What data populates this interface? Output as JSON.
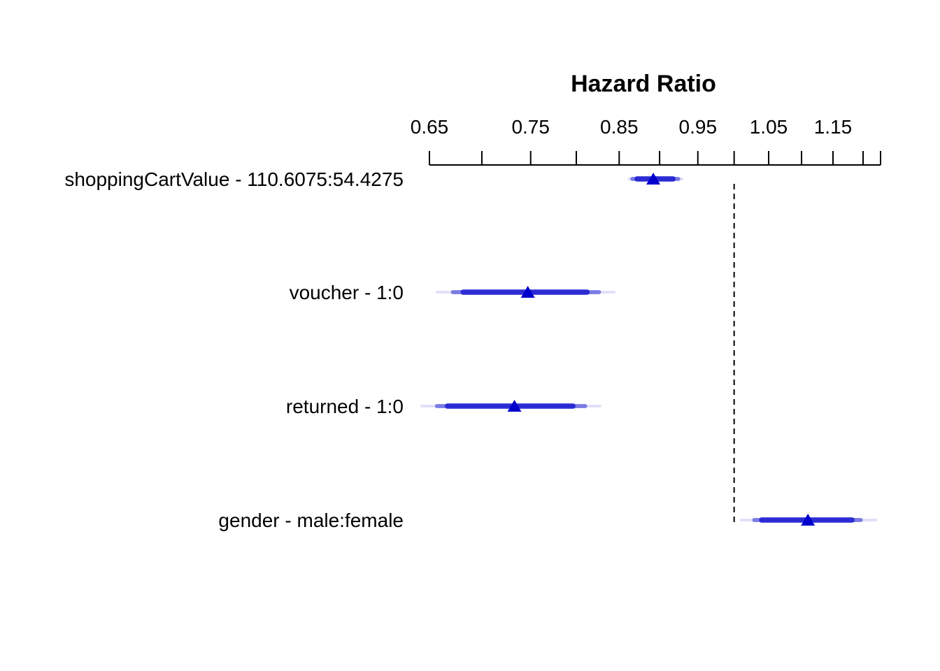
{
  "chart_data": {
    "type": "forest",
    "title": "Hazard Ratio",
    "xscale": "log",
    "xlim": [
      0.65,
      1.23
    ],
    "x_tick_labels": [
      "0.65",
      "0.75",
      "0.85",
      "0.95",
      "1.05",
      "1.15"
    ],
    "x_ticks_labeled": [
      0.65,
      0.75,
      0.85,
      0.95,
      1.05,
      1.15
    ],
    "x_ticks_all": [
      0.65,
      0.7,
      0.75,
      0.8,
      0.85,
      0.9,
      0.95,
      1.0,
      1.05,
      1.1,
      1.15,
      1.2,
      1.23
    ],
    "reference_line": 1.0,
    "marker": "triangle",
    "color": "#0000CC",
    "rows": [
      {
        "label": "shoppingCartValue - 110.6075:54.4275",
        "estimate": 0.892,
        "ci": [
          [
            0.862,
            0.929
          ],
          [
            0.866,
            0.924
          ],
          [
            0.872,
            0.917
          ]
        ]
      },
      {
        "label": "voucher - 1:0",
        "estimate": 0.747,
        "ci": [
          [
            0.657,
            0.844
          ],
          [
            0.672,
            0.826
          ],
          [
            0.682,
            0.812
          ]
        ]
      },
      {
        "label": "returned - 1:0",
        "estimate": 0.733,
        "ci": [
          [
            0.643,
            0.827
          ],
          [
            0.657,
            0.81
          ],
          [
            0.667,
            0.796
          ]
        ]
      },
      {
        "label": "gender - male:female",
        "estimate": 1.11,
        "ci": [
          [
            1.01,
            1.222
          ],
          [
            1.029,
            1.196
          ],
          [
            1.04,
            1.181
          ]
        ]
      }
    ]
  }
}
